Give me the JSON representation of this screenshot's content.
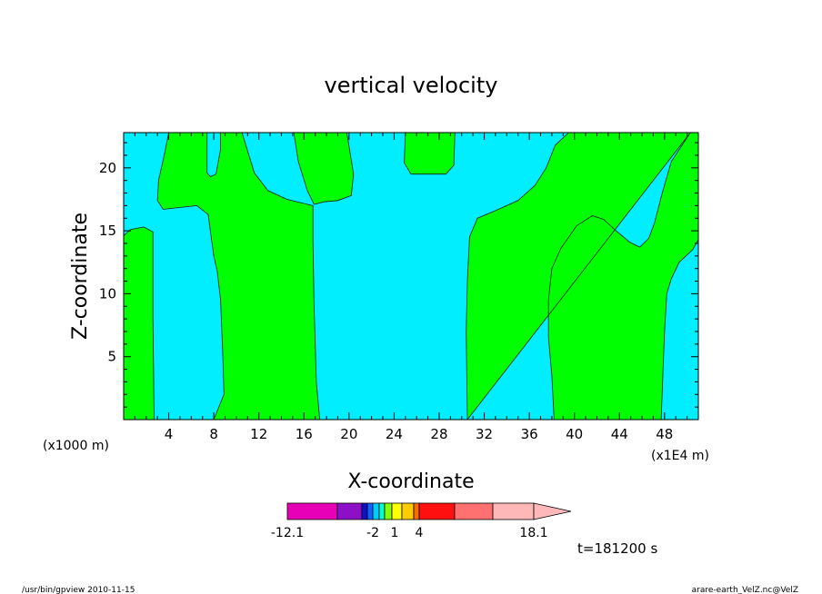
{
  "chart_data": {
    "type": "contour",
    "title": "vertical velocity",
    "xlabel": "X-coordinate",
    "ylabel": "Z-coordinate",
    "x_axis_unit_left": "(x1000 m)",
    "x_axis_unit_right": "(x1E4 m)",
    "xlim": [
      0,
      51
    ],
    "ylim": [
      0,
      22.8
    ],
    "x_ticks": [
      "4",
      "8",
      "12",
      "16",
      "20",
      "24",
      "28",
      "32",
      "36",
      "40",
      "44",
      "48"
    ],
    "y_ticks": [
      "5",
      "10",
      "15",
      "20"
    ],
    "grid": false,
    "fill_colors": {
      "positive": "#00ff00",
      "negative": "#00eeff"
    },
    "regions": [
      {
        "sign": "positive",
        "x_range": [
          0.0,
          2.6
        ],
        "z_range": [
          0,
          15.2
        ]
      },
      {
        "sign": "positive",
        "x_range": [
          3.0,
          17.5
        ],
        "z_range": [
          0,
          22.8
        ]
      },
      {
        "sign": "positive",
        "x_range": [
          15.0,
          20.5
        ],
        "z_range": [
          17.0,
          22.8
        ]
      },
      {
        "sign": "positive",
        "x_range": [
          25.0,
          29.5
        ],
        "z_range": [
          19.5,
          22.8
        ]
      },
      {
        "sign": "positive",
        "x_range": [
          30.0,
          51.0
        ],
        "z_range": [
          0,
          22.8
        ]
      }
    ],
    "colorbar": {
      "labels": [
        "-12.1",
        "-2",
        "1",
        "4",
        "18.1"
      ],
      "colors": [
        "#e800b8",
        "#8c10c8",
        "#1010c8",
        "#1060ff",
        "#00ccff",
        "#00ffcc",
        "#88ff00",
        "#ffff00",
        "#ffcc00",
        "#ff6a00",
        "#ff1010",
        "#ff7070",
        "#ffb8b8"
      ]
    },
    "time_label": "t=181200 s"
  },
  "footer": {
    "left": "/usr/bin/gpview   2010-11-15",
    "right": "arare-earth_VelZ.nc@VelZ"
  }
}
